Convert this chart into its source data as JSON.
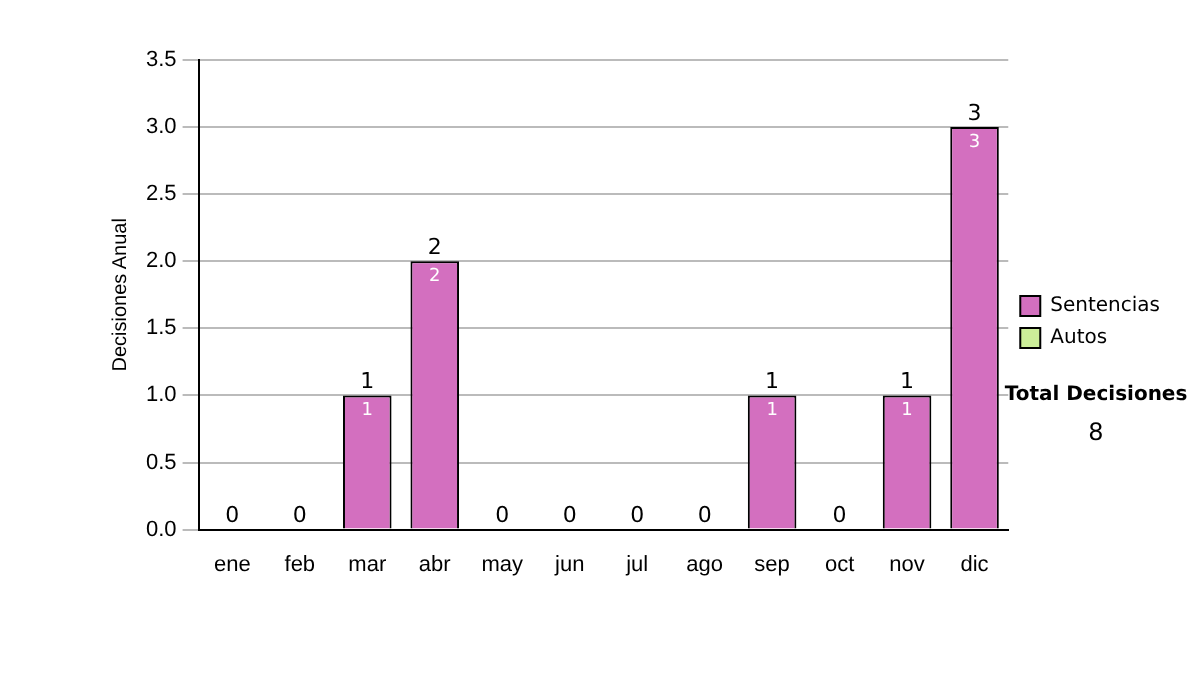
{
  "chart_data": {
    "type": "bar",
    "stacked": true,
    "ylabel": "Decisiones Anual",
    "categories": [
      "ene",
      "feb",
      "mar",
      "abr",
      "may",
      "jun",
      "jul",
      "ago",
      "sep",
      "oct",
      "nov",
      "dic"
    ],
    "series": [
      {
        "name": "Sentencias",
        "color": "#d36fbf",
        "values": [
          0,
          0,
          1,
          2,
          0,
          0,
          0,
          0,
          1,
          0,
          1,
          3
        ],
        "value_labels": [
          null,
          null,
          "1",
          "2",
          null,
          null,
          null,
          null,
          "1",
          null,
          "1",
          "3"
        ]
      },
      {
        "name": "Autos",
        "color": "#ccee99",
        "values": [
          0,
          0,
          0,
          0,
          0,
          0,
          0,
          0,
          0,
          0,
          0,
          0
        ]
      }
    ],
    "totals": [
      "0",
      "0",
      "1",
      "2",
      "0",
      "0",
      "0",
      "0",
      "1",
      "0",
      "1",
      "3"
    ],
    "ylim": [
      0,
      3.5
    ],
    "yticks": [
      {
        "value": 0,
        "label": "0.0"
      },
      {
        "value": 0.5,
        "label": "0.5"
      },
      {
        "value": 1,
        "label": "1.0"
      },
      {
        "value": 1.5,
        "label": "1.5"
      },
      {
        "value": 2,
        "label": "2.0"
      },
      {
        "value": 2.5,
        "label": "2.5"
      },
      {
        "value": 3,
        "label": "3.0"
      },
      {
        "value": 3.5,
        "label": "3.5"
      }
    ],
    "grid": "y",
    "legend": "right",
    "annotations": [
      "Total Decisiones",
      "8"
    ]
  }
}
